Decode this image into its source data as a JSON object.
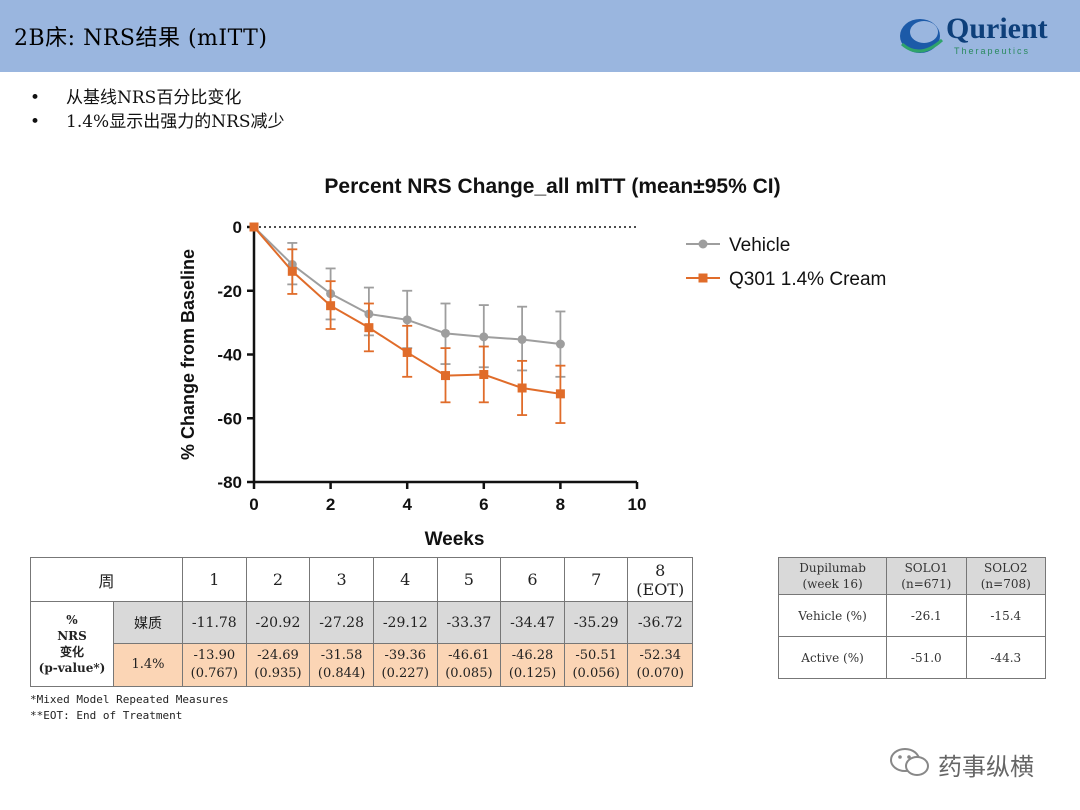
{
  "slide": {
    "title": "2B床: NRS结果 (mITT)",
    "logo": {
      "name": "Qurient",
      "sub": "Therapeutics"
    },
    "bullets": [
      "从基线NRS百分比变化",
      "1.4%显示出强力的NRS减少"
    ],
    "watermark": "药事纵横"
  },
  "chart_data": {
    "type": "line",
    "title": "Percent NRS Change_all mITT (mean±95% CI)",
    "xlabel": "Weeks",
    "ylabel": "% Change from Baseline",
    "xlim": [
      0,
      10
    ],
    "ylim": [
      -80,
      0
    ],
    "xticks": [
      "0",
      "2",
      "4",
      "6",
      "8",
      "10"
    ],
    "yticks": [
      "0",
      "-20",
      "-40",
      "-60",
      "-80"
    ],
    "reference_line": 0,
    "legend_position": "right",
    "x": [
      0,
      1,
      2,
      3,
      4,
      5,
      6,
      7,
      8
    ],
    "series": [
      {
        "name": "Vehicle",
        "color": "#9e9e9e",
        "marker": "circle",
        "values": [
          0,
          -11.78,
          -20.92,
          -27.28,
          -29.12,
          -33.37,
          -34.47,
          -35.29,
          -36.72
        ],
        "ci": [
          [
            0,
            0
          ],
          [
            -18,
            -5
          ],
          [
            -29,
            -13
          ],
          [
            -34,
            -19
          ],
          [
            -38,
            -20
          ],
          [
            -43,
            -24
          ],
          [
            -44,
            -24.5
          ],
          [
            -45,
            -25
          ],
          [
            -47,
            -26.5
          ]
        ]
      },
      {
        "name": "Q301 1.4% Cream",
        "color": "#e06c2a",
        "marker": "square",
        "values": [
          0,
          -13.9,
          -24.69,
          -31.58,
          -39.36,
          -46.61,
          -46.28,
          -50.51,
          -52.34
        ],
        "ci": [
          [
            0,
            0
          ],
          [
            -21,
            -7
          ],
          [
            -32,
            -17
          ],
          [
            -39,
            -24
          ],
          [
            -47,
            -31
          ],
          [
            -55,
            -38
          ],
          [
            -55,
            -37.5
          ],
          [
            -59,
            -42
          ],
          [
            -61.5,
            -43.5
          ]
        ]
      }
    ]
  },
  "table": {
    "header_label": "周",
    "weeks": [
      "1",
      "2",
      "3",
      "4",
      "5",
      "6",
      "7",
      "8\n(EOT)"
    ],
    "row_label": "%\nNRS\n变化\n(p-value*)",
    "vehicle_label": "媒质",
    "vehicle_values": [
      "-11.78",
      "-20.92",
      "-27.28",
      "-29.12",
      "-33.37",
      "-34.47",
      "-35.29",
      "-36.72"
    ],
    "active_label": "1.4%",
    "active_values": [
      "-13.90\n(0.767)",
      "-24.69\n(0.935)",
      "-31.58\n(0.844)",
      "-39.36\n(0.227)",
      "-46.61\n(0.085)",
      "-46.28\n(0.125)",
      "-50.51\n(0.056)",
      "-52.34\n(0.070)"
    ]
  },
  "footnotes": [
    "*Mixed Model Repeated Measures",
    "**EOT: End of Treatment"
  ],
  "dupilumab": {
    "headers": [
      "Dupilumab\n(week 16)",
      "SOLO1\n(n=671)",
      "SOLO2\n(n=708)"
    ],
    "rows": [
      [
        "Vehicle (%)",
        "-26.1",
        "-15.4"
      ],
      [
        "Active (%)",
        "-51.0",
        "-44.3"
      ]
    ]
  }
}
